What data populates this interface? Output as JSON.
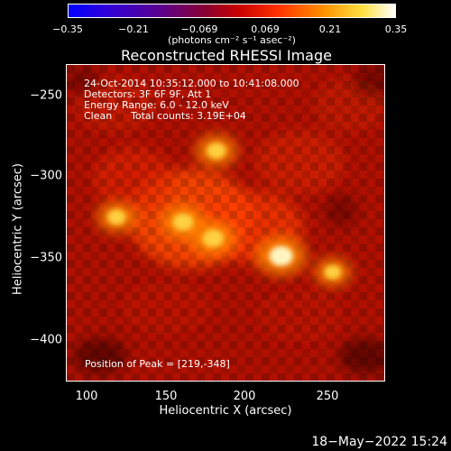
{
  "colorbar": {
    "ticks": [
      "−0.35",
      "−0.21",
      "−0.069",
      "0.069",
      "0.21",
      "0.35"
    ],
    "units": "(photons cm⁻² s⁻¹ asec⁻²)"
  },
  "chart_data": {
    "type": "heatmap",
    "title": "Reconstructed RHESSI Image",
    "xlabel": "Heliocentric X (arcsec)",
    "ylabel": "Heliocentric Y (arcsec)",
    "x_ticks": [
      "100",
      "150",
      "200",
      "250"
    ],
    "y_ticks": [
      "−250",
      "−300",
      "−350",
      "−400"
    ],
    "xlim": [
      90,
      281
    ],
    "ylim": [
      -425,
      -230
    ],
    "colormap": "red-temperature",
    "color_range": [
      -0.35,
      0.35
    ],
    "annotations": {
      "time": "24-Oct-2014 10:35:12.000 to 10:41:08.000",
      "detectors": "Detectors: 3F 6F 9F, Att 1",
      "energy": "Energy Range: 6.0 - 12.0 keV",
      "clean": "Clean",
      "counts": "Total counts: 3.19E+04",
      "peak": "Position of Peak = [219,-348]"
    },
    "peak_position": [
      219,
      -348
    ],
    "sources": [
      {
        "x": 219,
        "y": -348,
        "intensity": 1.0
      },
      {
        "x": 178,
        "y": -337,
        "intensity": 0.85
      },
      {
        "x": 160,
        "y": -327,
        "intensity": 0.8
      },
      {
        "x": 120,
        "y": -324,
        "intensity": 0.65
      },
      {
        "x": 180,
        "y": -283,
        "intensity": 0.7
      },
      {
        "x": 250,
        "y": -358,
        "intensity": 0.55
      }
    ]
  },
  "datestamp": "18−May−2022 15:24"
}
